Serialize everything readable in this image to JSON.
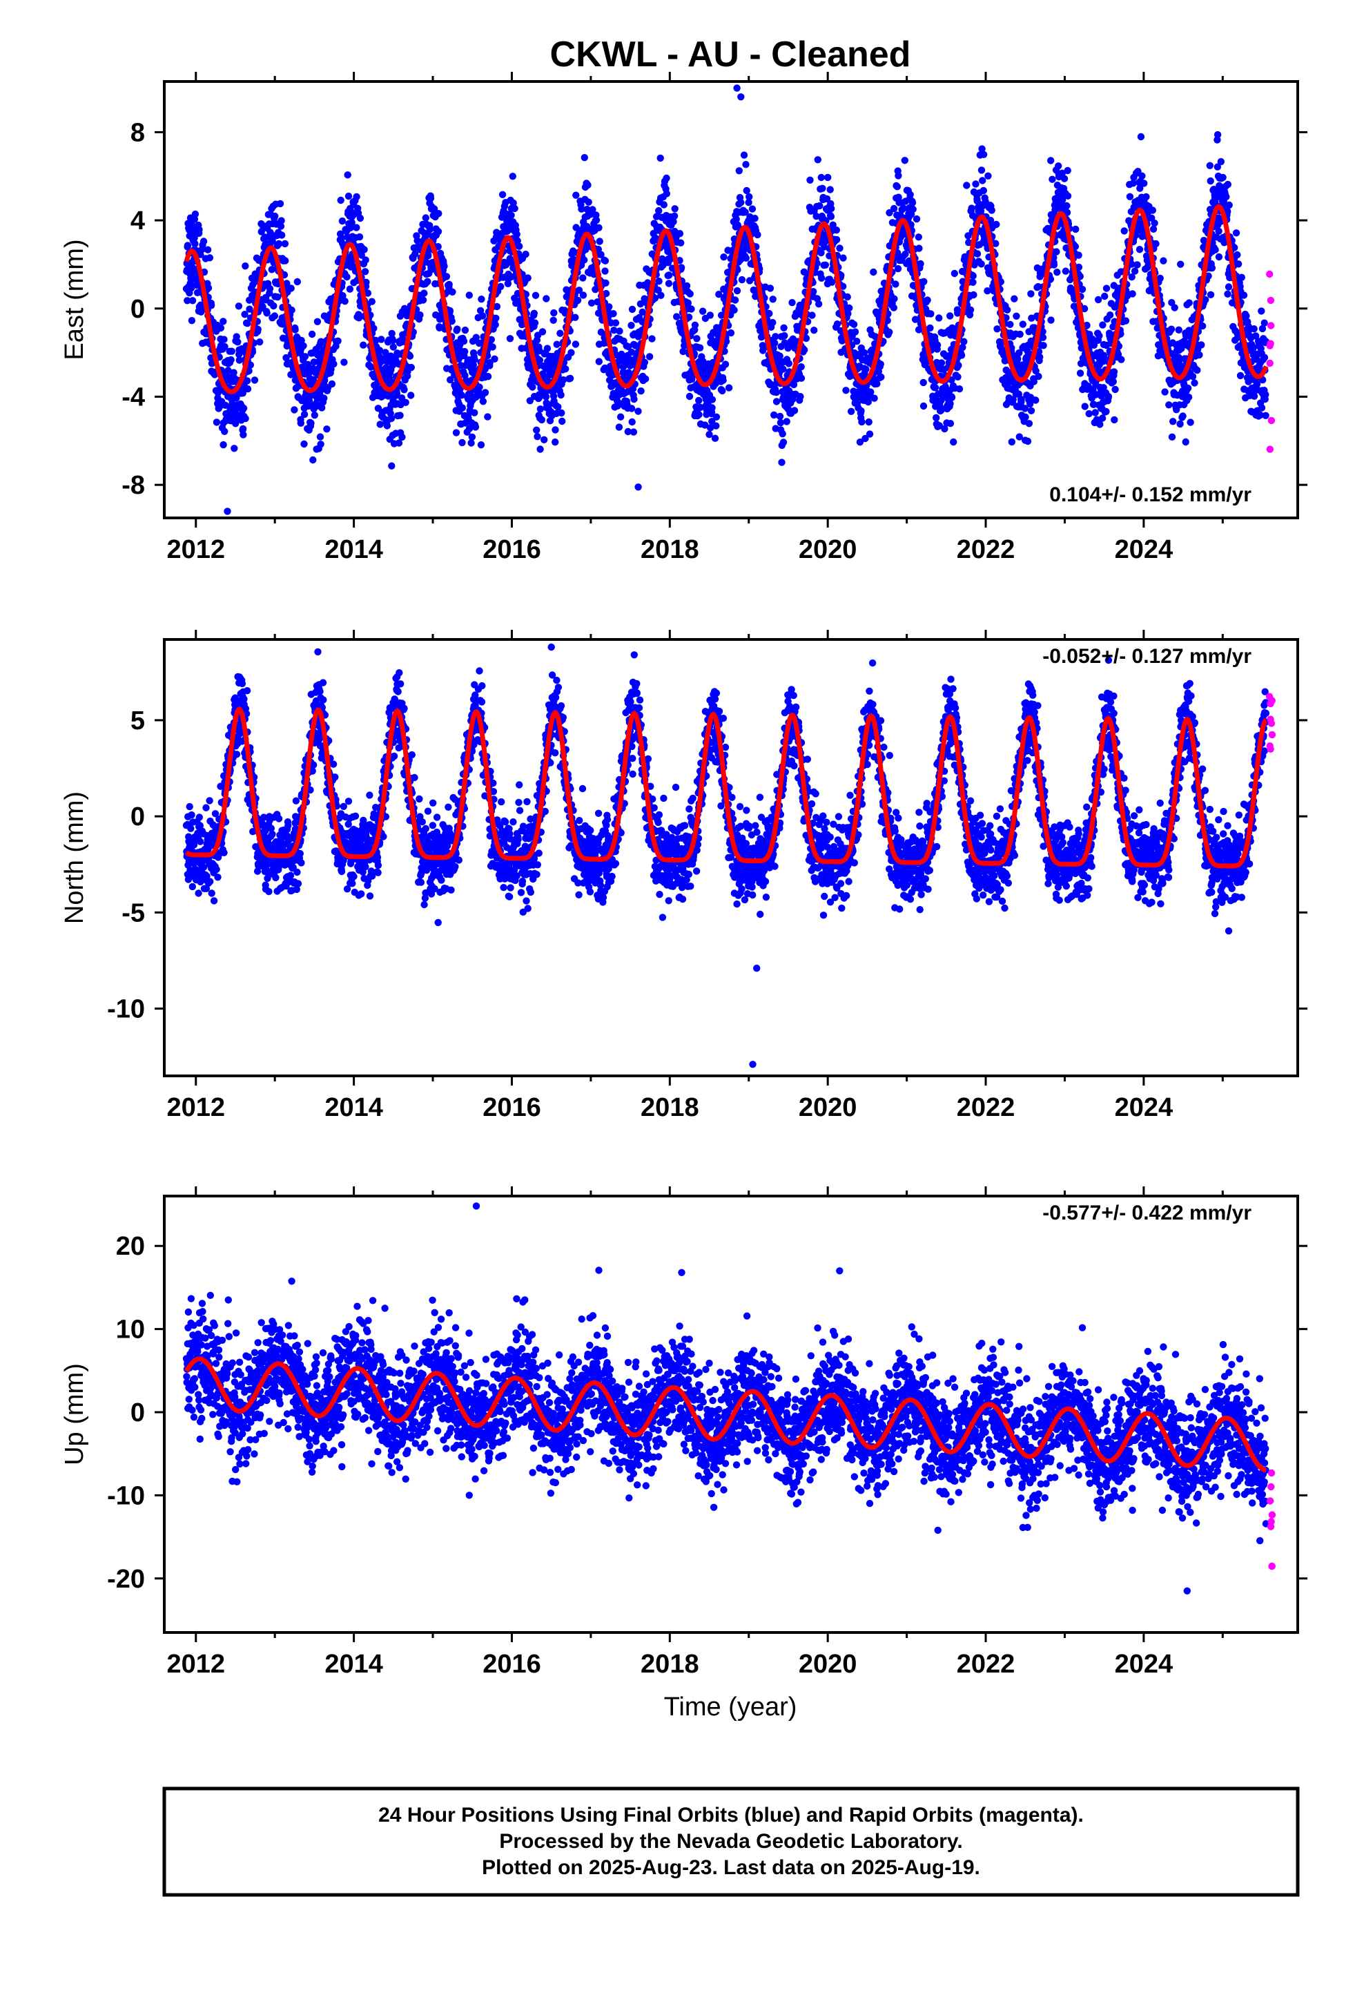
{
  "page_title": "CKWL  - AU - Cleaned",
  "xlabel": "Time (year)",
  "footer": {
    "line1": "24 Hour Positions Using Final Orbits (blue) and Rapid Orbits (magenta).",
    "line2": "Processed by the Nevada Geodetic Laboratory.",
    "line3": "Plotted on 2025-Aug-23. Last data on 2025-Aug-19."
  },
  "colors": {
    "final": "#0000ff",
    "rapid": "#ff00ff",
    "model": "#ff0000"
  },
  "chart_data": [
    {
      "type": "scatter",
      "component": "east",
      "ylabel": "East (mm)",
      "rate_text": "0.104+/- 0.152 mm/yr",
      "xlim": [
        2011.6,
        2025.95
      ],
      "ylim": [
        -9.5,
        10.3
      ],
      "xticks": [
        "2012",
        "2014",
        "2016",
        "2018",
        "2020",
        "2022",
        "2024"
      ],
      "yticks": [
        "8",
        "4",
        "0",
        "-4",
        "-8"
      ],
      "grid": false,
      "data_start": 2011.88,
      "data_end": 2025.55,
      "rapid_start": 2025.59,
      "rapid_end": 2025.63,
      "model": {
        "offset": -0.3,
        "rate": 0.104,
        "ref_epoch": 2018.7,
        "annual_amp": [
          3.2,
          3.9
        ],
        "annual_phase_peak": 0.95,
        "semiannual_amp": 0.4
      },
      "scatter_sigma": 1.2,
      "outliers": [
        {
          "x": 2018.85,
          "y": 10.0
        },
        {
          "x": 2018.9,
          "y": 9.6
        },
        {
          "x": 2012.4,
          "y": -9.2
        },
        {
          "x": 2017.6,
          "y": -8.1
        }
      ]
    },
    {
      "type": "scatter",
      "component": "north",
      "ylabel": "North (mm)",
      "rate_text": "-0.052+/- 0.127 mm/yr",
      "xlim": [
        2011.6,
        2025.95
      ],
      "ylim": [
        -13.5,
        9.2
      ],
      "xticks": [
        "2012",
        "2014",
        "2016",
        "2018",
        "2020",
        "2022",
        "2024"
      ],
      "yticks": [
        "5",
        "0",
        "-5",
        "-10"
      ],
      "grid": false,
      "data_start": 2011.88,
      "data_end": 2025.55,
      "rapid_start": 2025.59,
      "rapid_end": 2025.63,
      "model": {
        "offset": 0.0,
        "rate": -0.052,
        "ref_epoch": 2018.7,
        "peak": [
          5.6,
          5.0
        ],
        "trough": [
          -2.0,
          -2.6
        ],
        "peak_phase": 0.55,
        "sharpness": 3
      },
      "scatter_sigma": 1.0,
      "outliers": [
        {
          "x": 2016.5,
          "y": 8.8
        },
        {
          "x": 2017.55,
          "y": 8.4
        },
        {
          "x": 2019.05,
          "y": -12.9
        },
        {
          "x": 2019.1,
          "y": -7.9
        }
      ]
    },
    {
      "type": "scatter",
      "component": "up",
      "ylabel": "Up (mm)",
      "rate_text": "-0.577+/- 0.422 mm/yr",
      "xlim": [
        2011.6,
        2025.95
      ],
      "ylim": [
        -26.5,
        26.0
      ],
      "xticks": [
        "2012",
        "2014",
        "2016",
        "2018",
        "2020",
        "2022",
        "2024"
      ],
      "yticks": [
        "20",
        "10",
        "0",
        "-10",
        "-20"
      ],
      "grid": false,
      "data_start": 2011.88,
      "data_end": 2025.55,
      "rapid_start": 2025.59,
      "rapid_end": 2025.63,
      "model": {
        "trend": [
          [
            2011.88,
            3.5
          ],
          [
            2018.0,
            0.0
          ],
          [
            2020.1,
            -1.0
          ],
          [
            2025.6,
            -4.0
          ]
        ],
        "annual_amp": 3.0,
        "annual_phase_peak": 0.05
      },
      "scatter_sigma": 3.2,
      "outliers": [
        {
          "x": 2015.55,
          "y": 24.8
        },
        {
          "x": 2018.15,
          "y": 16.8
        },
        {
          "x": 2020.15,
          "y": 17.0
        },
        {
          "x": 2024.55,
          "y": -21.5
        }
      ]
    }
  ]
}
